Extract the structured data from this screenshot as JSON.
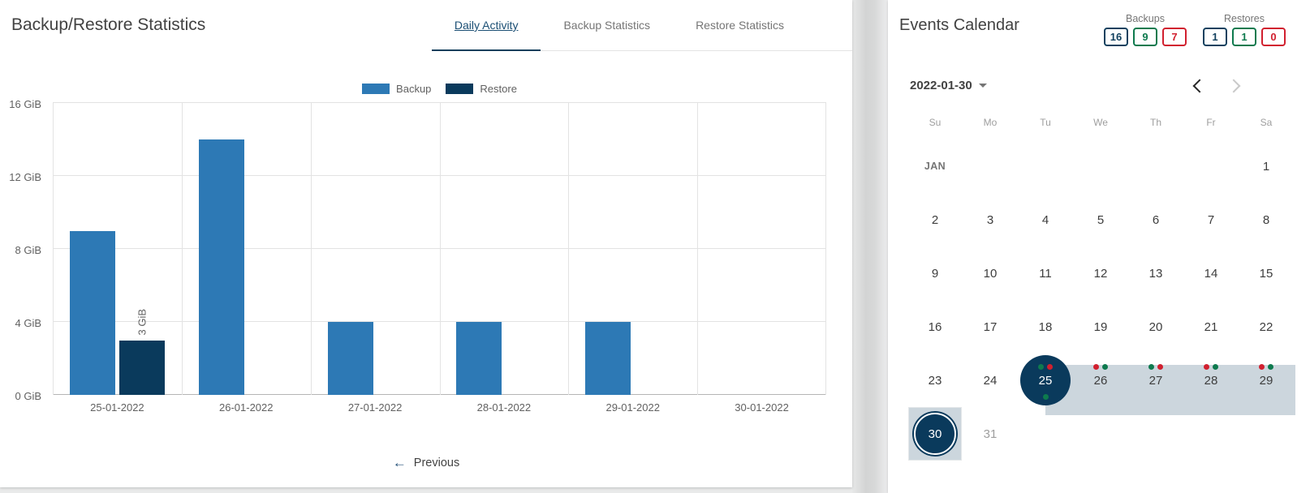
{
  "colors": {
    "backup_blue": "#2d79b5",
    "restore_navy": "#0a3a5c",
    "band": "#ccd6dd",
    "navy": "#12415f",
    "green": "#0e7a4e",
    "red": "#d1202f",
    "active_tab": "#1b4f74"
  },
  "icons": {
    "previous_arrow": "←"
  },
  "left_panel": {
    "title": "Backup/Restore Statistics",
    "tabs": [
      {
        "label": "Daily Activity",
        "active": true
      },
      {
        "label": "Backup Statistics",
        "active": false
      },
      {
        "label": "Restore Statistics",
        "active": false
      }
    ],
    "previous_label": "Previous"
  },
  "chart_data": {
    "type": "bar",
    "title": "Daily Activity",
    "categories": [
      "25-01-2022",
      "26-01-2022",
      "27-01-2022",
      "28-01-2022",
      "29-01-2022",
      "30-01-2022"
    ],
    "series": [
      {
        "name": "Backup",
        "color": "#2d79b5",
        "values": [
          9,
          14,
          4,
          4,
          4,
          0
        ]
      },
      {
        "name": "Restore",
        "color": "#0a3a5c",
        "values": [
          3,
          0,
          0,
          0,
          0,
          0
        ]
      }
    ],
    "bar_labels": [
      {
        "series": "Restore",
        "category_index": 0,
        "text": "3 GiB"
      }
    ],
    "xlabel": "",
    "ylabel": "",
    "ytick_labels": [
      "0 GiB",
      "4 GiB",
      "8 GiB",
      "12 GiB",
      "16 GiB"
    ],
    "ylim": [
      0,
      16
    ],
    "unit": "GiB",
    "grid": true,
    "legend_position": "top"
  },
  "calendar": {
    "title": "Events Calendar",
    "counters": [
      {
        "label": "Backups",
        "values": [
          {
            "value": "16",
            "color": "navy"
          },
          {
            "value": "9",
            "color": "green"
          },
          {
            "value": "7",
            "color": "red"
          }
        ]
      },
      {
        "label": "Restores",
        "values": [
          {
            "value": "1",
            "color": "navy"
          },
          {
            "value": "1",
            "color": "green"
          },
          {
            "value": "0",
            "color": "red"
          }
        ]
      }
    ],
    "selected_date": "2022-01-30",
    "nav": {
      "prev_enabled": true,
      "next_enabled": false
    },
    "day_headers": [
      "Su",
      "Mo",
      "Tu",
      "We",
      "Th",
      "Fr",
      "Sa"
    ],
    "band": {
      "week_index": 4,
      "start_col": 2
    },
    "weeks": [
      [
        {
          "t": "JAN",
          "month": true
        },
        {},
        {},
        {},
        {},
        {},
        {
          "t": "1"
        }
      ],
      [
        {
          "t": "2"
        },
        {
          "t": "3"
        },
        {
          "t": "4"
        },
        {
          "t": "5"
        },
        {
          "t": "6"
        },
        {
          "t": "7"
        },
        {
          "t": "8"
        }
      ],
      [
        {
          "t": "9"
        },
        {
          "t": "10"
        },
        {
          "t": "11"
        },
        {
          "t": "12"
        },
        {
          "t": "13"
        },
        {
          "t": "14"
        },
        {
          "t": "15"
        }
      ],
      [
        {
          "t": "16"
        },
        {
          "t": "17"
        },
        {
          "t": "18"
        },
        {
          "t": "19"
        },
        {
          "t": "20"
        },
        {
          "t": "21"
        },
        {
          "t": "22"
        }
      ],
      [
        {
          "t": "23"
        },
        {
          "t": "24"
        },
        {
          "t": "25",
          "selected": true,
          "dots_top": [
            "green",
            "red"
          ],
          "dots_bottom": [
            "green"
          ]
        },
        {
          "t": "26",
          "dots_top": [
            "red",
            "green"
          ]
        },
        {
          "t": "27",
          "dots_top": [
            "green",
            "red"
          ]
        },
        {
          "t": "28",
          "dots_top": [
            "red",
            "green"
          ]
        },
        {
          "t": "29",
          "dots_top": [
            "red",
            "green"
          ]
        }
      ],
      [
        {
          "t": "30",
          "today": true
        },
        {
          "t": "31",
          "muted": true
        },
        {},
        {},
        {},
        {},
        {}
      ]
    ]
  }
}
